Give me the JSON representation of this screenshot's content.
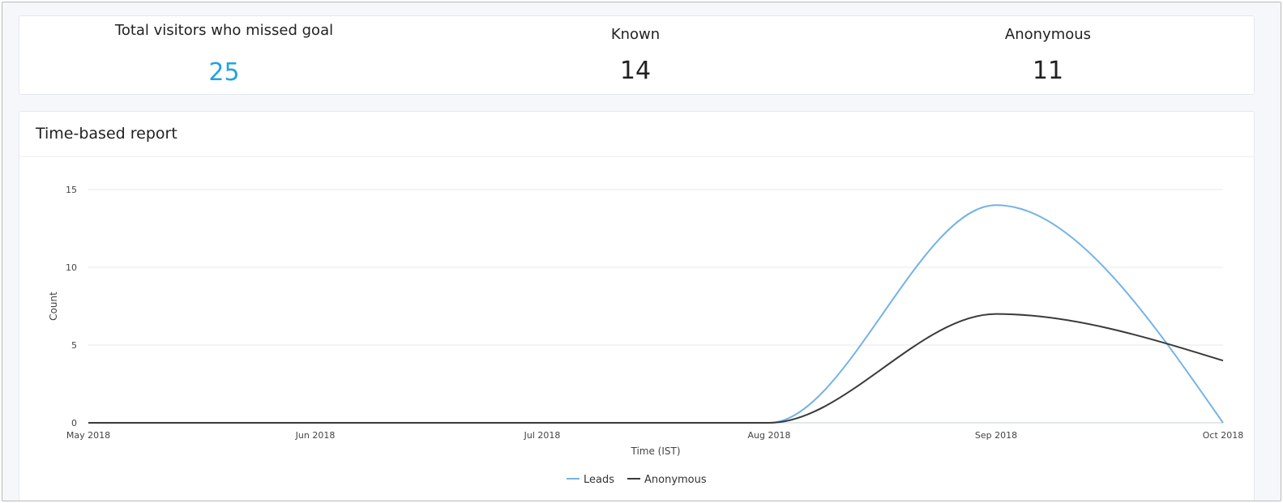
{
  "stats": {
    "total": {
      "label": "Total visitors who missed goal",
      "value": "25"
    },
    "known": {
      "label": "Known",
      "value": "14"
    },
    "anonymous": {
      "label": "Anonymous",
      "value": "11"
    }
  },
  "report": {
    "title": "Time-based report"
  },
  "colors": {
    "accent": "#22a3e3",
    "leads": "#74b3e7",
    "anonymous": "#3a3a3a",
    "grid": "#e6e9ee"
  },
  "chart_data": {
    "type": "line",
    "xlabel": "Time (IST)",
    "ylabel": "Count",
    "ylim": [
      0,
      15
    ],
    "yticks": [
      "0",
      "5",
      "10",
      "15"
    ],
    "x": [
      "May 2018",
      "Jun 2018",
      "Jul 2018",
      "Aug 2018",
      "Sep 2018",
      "Oct 2018"
    ],
    "series": [
      {
        "name": "Leads",
        "values": [
          0,
          0,
          0,
          0,
          14,
          0
        ]
      },
      {
        "name": "Anonymous",
        "values": [
          0,
          0,
          0,
          0,
          7,
          4
        ]
      }
    ],
    "legend_position": "bottom-center",
    "grid": true
  }
}
